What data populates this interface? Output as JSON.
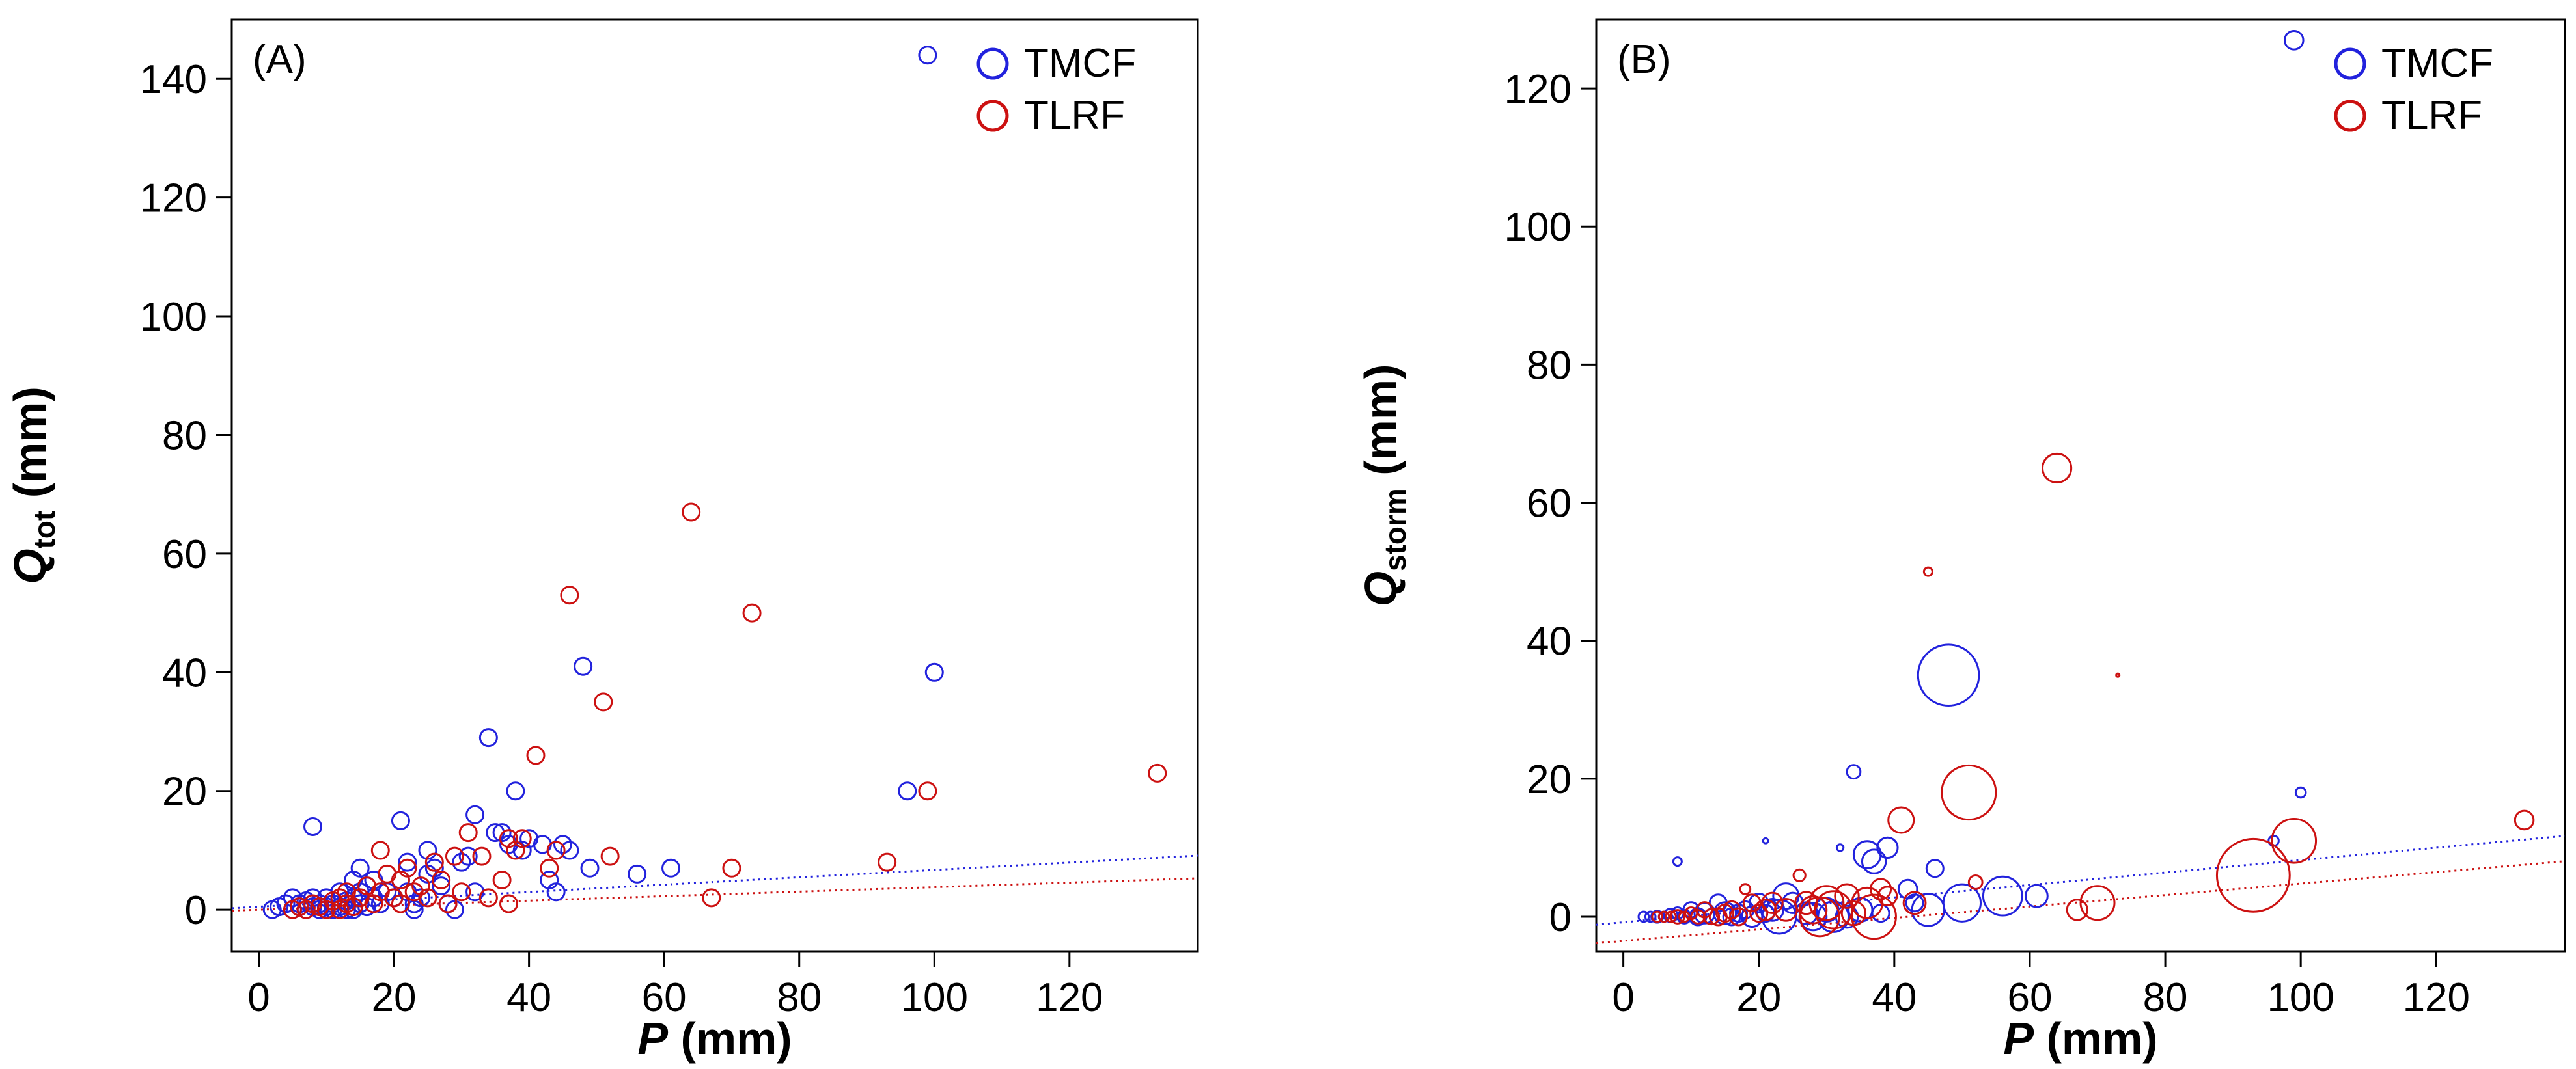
{
  "colors": {
    "TMCF": "#2222dd",
    "TLRF": "#cc1111"
  },
  "chart_data": [
    {
      "type": "scatter",
      "panel_label": "(A)",
      "xlabel": {
        "var": "P",
        "unit": " (mm)"
      },
      "ylabel": {
        "var": "Q",
        "sub": "tot",
        "unit": " (mm)"
      },
      "xlim": [
        -4,
        139
      ],
      "ylim": [
        -7,
        150
      ],
      "xticks": [
        0,
        20,
        40,
        60,
        80,
        100,
        120
      ],
      "yticks": [
        0,
        20,
        40,
        60,
        80,
        100,
        120,
        140
      ],
      "legend": {
        "position": "top-right",
        "entries": [
          "TMCF",
          "TLRF"
        ]
      },
      "series": [
        {
          "name": "TMCF",
          "trend": {
            "intercept": 0.5,
            "slope": 0.062
          },
          "points": [
            [
              2,
              0
            ],
            [
              3,
              0.5
            ],
            [
              4,
              1
            ],
            [
              5,
              2
            ],
            [
              5,
              0
            ],
            [
              6,
              1
            ],
            [
              6,
              0.5
            ],
            [
              7,
              1.5
            ],
            [
              7,
              0
            ],
            [
              8,
              14
            ],
            [
              8,
              2
            ],
            [
              8,
              0.5
            ],
            [
              9,
              1
            ],
            [
              9,
              0
            ],
            [
              10,
              2
            ],
            [
              10,
              0.5
            ],
            [
              11,
              1
            ],
            [
              11,
              0
            ],
            [
              12,
              3
            ],
            [
              12,
              0.5
            ],
            [
              13,
              1.5
            ],
            [
              13,
              0
            ],
            [
              14,
              5
            ],
            [
              14,
              2
            ],
            [
              14,
              0
            ],
            [
              15,
              7
            ],
            [
              15,
              3
            ],
            [
              15,
              1
            ],
            [
              16,
              4
            ],
            [
              16,
              0.5
            ],
            [
              17,
              5
            ],
            [
              17,
              2
            ],
            [
              18,
              1
            ],
            [
              19,
              3
            ],
            [
              20,
              2
            ],
            [
              21,
              15
            ],
            [
              21,
              5
            ],
            [
              22,
              8
            ],
            [
              22,
              3
            ],
            [
              23,
              1
            ],
            [
              23,
              0
            ],
            [
              24,
              2
            ],
            [
              25,
              10
            ],
            [
              25,
              6
            ],
            [
              26,
              7
            ],
            [
              27,
              4
            ],
            [
              28,
              1
            ],
            [
              29,
              0
            ],
            [
              30,
              8
            ],
            [
              31,
              9
            ],
            [
              32,
              16
            ],
            [
              32,
              3
            ],
            [
              34,
              29
            ],
            [
              35,
              13
            ],
            [
              36,
              13
            ],
            [
              37,
              11
            ],
            [
              38,
              20
            ],
            [
              39,
              10
            ],
            [
              40,
              12
            ],
            [
              42,
              11
            ],
            [
              43,
              5
            ],
            [
              44,
              3
            ],
            [
              45,
              11
            ],
            [
              46,
              10
            ],
            [
              48,
              41
            ],
            [
              49,
              7
            ],
            [
              56,
              6
            ],
            [
              61,
              7
            ],
            [
              96,
              20
            ],
            [
              99,
              144
            ],
            [
              100,
              40
            ]
          ]
        },
        {
          "name": "TLRF",
          "trend": {
            "intercept": 0.0,
            "slope": 0.038
          },
          "points": [
            [
              5,
              0
            ],
            [
              6,
              0.5
            ],
            [
              7,
              0
            ],
            [
              8,
              1
            ],
            [
              9,
              0.5
            ],
            [
              10,
              0
            ],
            [
              11,
              1.5
            ],
            [
              12,
              2
            ],
            [
              12,
              0
            ],
            [
              13,
              3
            ],
            [
              13,
              1
            ],
            [
              14,
              0.5
            ],
            [
              15,
              2
            ],
            [
              16,
              4
            ],
            [
              17,
              1
            ],
            [
              18,
              10
            ],
            [
              18,
              3
            ],
            [
              19,
              6
            ],
            [
              20,
              2
            ],
            [
              21,
              5
            ],
            [
              21,
              1
            ],
            [
              22,
              7
            ],
            [
              23,
              3
            ],
            [
              24,
              4
            ],
            [
              25,
              2
            ],
            [
              26,
              8
            ],
            [
              27,
              5
            ],
            [
              28,
              1
            ],
            [
              29,
              9
            ],
            [
              30,
              3
            ],
            [
              31,
              13
            ],
            [
              33,
              9
            ],
            [
              34,
              2
            ],
            [
              36,
              5
            ],
            [
              37,
              1
            ],
            [
              37,
              12
            ],
            [
              38,
              10
            ],
            [
              39,
              12
            ],
            [
              41,
              26
            ],
            [
              43,
              7
            ],
            [
              44,
              10
            ],
            [
              46,
              53
            ],
            [
              51,
              35
            ],
            [
              52,
              9
            ],
            [
              64,
              67
            ],
            [
              67,
              2
            ],
            [
              70,
              7
            ],
            [
              73,
              50
            ],
            [
              93,
              8
            ],
            [
              99,
              20
            ],
            [
              133,
              23
            ]
          ]
        }
      ]
    },
    {
      "type": "scatter",
      "panel_label": "(B)",
      "xlabel": {
        "var": "P",
        "unit": " (mm)"
      },
      "ylabel": {
        "var": "Q",
        "sub": "storm",
        "unit": " (mm)"
      },
      "xlim": [
        -4,
        139
      ],
      "ylim": [
        -5,
        130
      ],
      "xticks": [
        0,
        20,
        40,
        60,
        80,
        100,
        120
      ],
      "yticks": [
        0,
        20,
        40,
        60,
        80,
        100,
        120
      ],
      "legend": {
        "position": "top-right",
        "entries": [
          "TMCF",
          "TLRF"
        ]
      },
      "series": [
        {
          "name": "TMCF",
          "trend": {
            "intercept": -0.8,
            "slope": 0.09
          },
          "points": [
            [
              3,
              0,
              0.6
            ],
            [
              4,
              0,
              0.6
            ],
            [
              5,
              0,
              0.7
            ],
            [
              6,
              0,
              0.6
            ],
            [
              7,
              0.2,
              0.8
            ],
            [
              8,
              8,
              0.5
            ],
            [
              8,
              0.5,
              0.7
            ],
            [
              9,
              0,
              0.8
            ],
            [
              10,
              1,
              0.9
            ],
            [
              11,
              0,
              1
            ],
            [
              12,
              0.5,
              1.2
            ],
            [
              13,
              0,
              0.9
            ],
            [
              14,
              2,
              1
            ],
            [
              15,
              0.5,
              1.3
            ],
            [
              16,
              0,
              1
            ],
            [
              17,
              0.5,
              1
            ],
            [
              18,
              1,
              1
            ],
            [
              19,
              0,
              1.2
            ],
            [
              20,
              2,
              1.1
            ],
            [
              21,
              11,
              0.3
            ],
            [
              21,
              0.5,
              1
            ],
            [
              22,
              1,
              1.3
            ],
            [
              23,
              0,
              2
            ],
            [
              24,
              3,
              1.5
            ],
            [
              25,
              2,
              1.2
            ],
            [
              27,
              0.5,
              1.3
            ],
            [
              28,
              0,
              1.6
            ],
            [
              30,
              1,
              1.4
            ],
            [
              31,
              0,
              1.8
            ],
            [
              32,
              10,
              0.4
            ],
            [
              33,
              0,
              1.3
            ],
            [
              34,
              21,
              0.8
            ],
            [
              35,
              1,
              1.4
            ],
            [
              36,
              9,
              1.6
            ],
            [
              37,
              8,
              1.4
            ],
            [
              38,
              0.5,
              1
            ],
            [
              39,
              10,
              1.2
            ],
            [
              42,
              4,
              1.1
            ],
            [
              43,
              2,
              1
            ],
            [
              45,
              1,
              1.9
            ],
            [
              46,
              7,
              1
            ],
            [
              48,
              35,
              3.6
            ],
            [
              50,
              2,
              2.2
            ],
            [
              56,
              3,
              2.3
            ],
            [
              61,
              3,
              1.3
            ],
            [
              96,
              11,
              0.6
            ],
            [
              99,
              127,
              1.1
            ],
            [
              100,
              18,
              0.6
            ]
          ]
        },
        {
          "name": "TLRF",
          "trend": {
            "intercept": -3.5,
            "slope": 0.083
          },
          "points": [
            [
              5,
              0,
              0.6
            ],
            [
              6,
              0,
              0.6
            ],
            [
              7,
              0,
              0.6
            ],
            [
              8,
              0,
              0.8
            ],
            [
              9,
              0,
              0.6
            ],
            [
              10,
              0.5,
              0.7
            ],
            [
              11,
              0,
              0.8
            ],
            [
              12,
              1,
              0.9
            ],
            [
              13,
              0,
              0.9
            ],
            [
              14,
              0,
              1
            ],
            [
              15,
              0.5,
              1
            ],
            [
              16,
              1,
              1
            ],
            [
              17,
              0,
              1
            ],
            [
              18,
              4,
              0.6
            ],
            [
              19,
              2,
              1
            ],
            [
              20,
              0.5,
              1
            ],
            [
              21,
              1,
              1.2
            ],
            [
              22,
              2,
              1.2
            ],
            [
              24,
              1,
              1.3
            ],
            [
              26,
              6,
              0.7
            ],
            [
              27,
              2,
              1.3
            ],
            [
              28,
              1,
              1.6
            ],
            [
              29,
              0,
              2.3
            ],
            [
              30,
              2,
              2
            ],
            [
              31,
              1,
              2.2
            ],
            [
              33,
              3,
              1.4
            ],
            [
              34,
              0.5,
              1.4
            ],
            [
              36,
              2,
              1.8
            ],
            [
              37,
              0,
              2.6
            ],
            [
              38,
              4,
              1.2
            ],
            [
              39,
              3,
              1.1
            ],
            [
              41,
              14,
              1.5
            ],
            [
              43,
              2,
              1.3
            ],
            [
              45,
              50,
              0.5
            ],
            [
              51,
              18,
              3.2
            ],
            [
              52,
              5,
              0.8
            ],
            [
              64,
              65,
              1.7
            ],
            [
              67,
              1,
              1.2
            ],
            [
              70,
              2,
              2
            ],
            [
              73,
              35,
              0.2
            ],
            [
              93,
              6,
              4.3
            ],
            [
              99,
              11,
              2.6
            ],
            [
              133,
              14,
              1.1
            ]
          ]
        }
      ]
    }
  ]
}
